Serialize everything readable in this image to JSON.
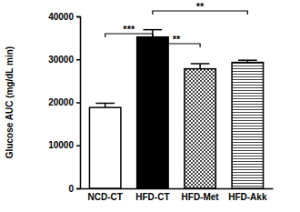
{
  "chart_data": {
    "type": "bar",
    "y_label": "Glucose AUC (mg/dL min)",
    "categories": [
      "NCD-CT",
      "HFD-CT",
      "HFD-Met",
      "HFD-Akk"
    ],
    "values": [
      18800,
      35200,
      27800,
      29300
    ],
    "errors": [
      1000,
      1700,
      1200,
      500
    ],
    "colors": [
      "#ffffff",
      "#000000",
      "#ffffff",
      "#ffffff"
    ],
    "ylim": [
      0,
      40000
    ],
    "yticks": [
      0,
      10000,
      20000,
      30000,
      40000
    ],
    "grid": false,
    "annotations": [
      {
        "text": "***",
        "between": [
          "NCD-CT",
          "HFD-CT"
        ]
      },
      {
        "text": "**",
        "between": [
          "HFD-CT",
          "HFD-Met"
        ]
      },
      {
        "text": "**",
        "between": [
          "HFD-CT",
          "HFD-Akk"
        ]
      }
    ]
  }
}
